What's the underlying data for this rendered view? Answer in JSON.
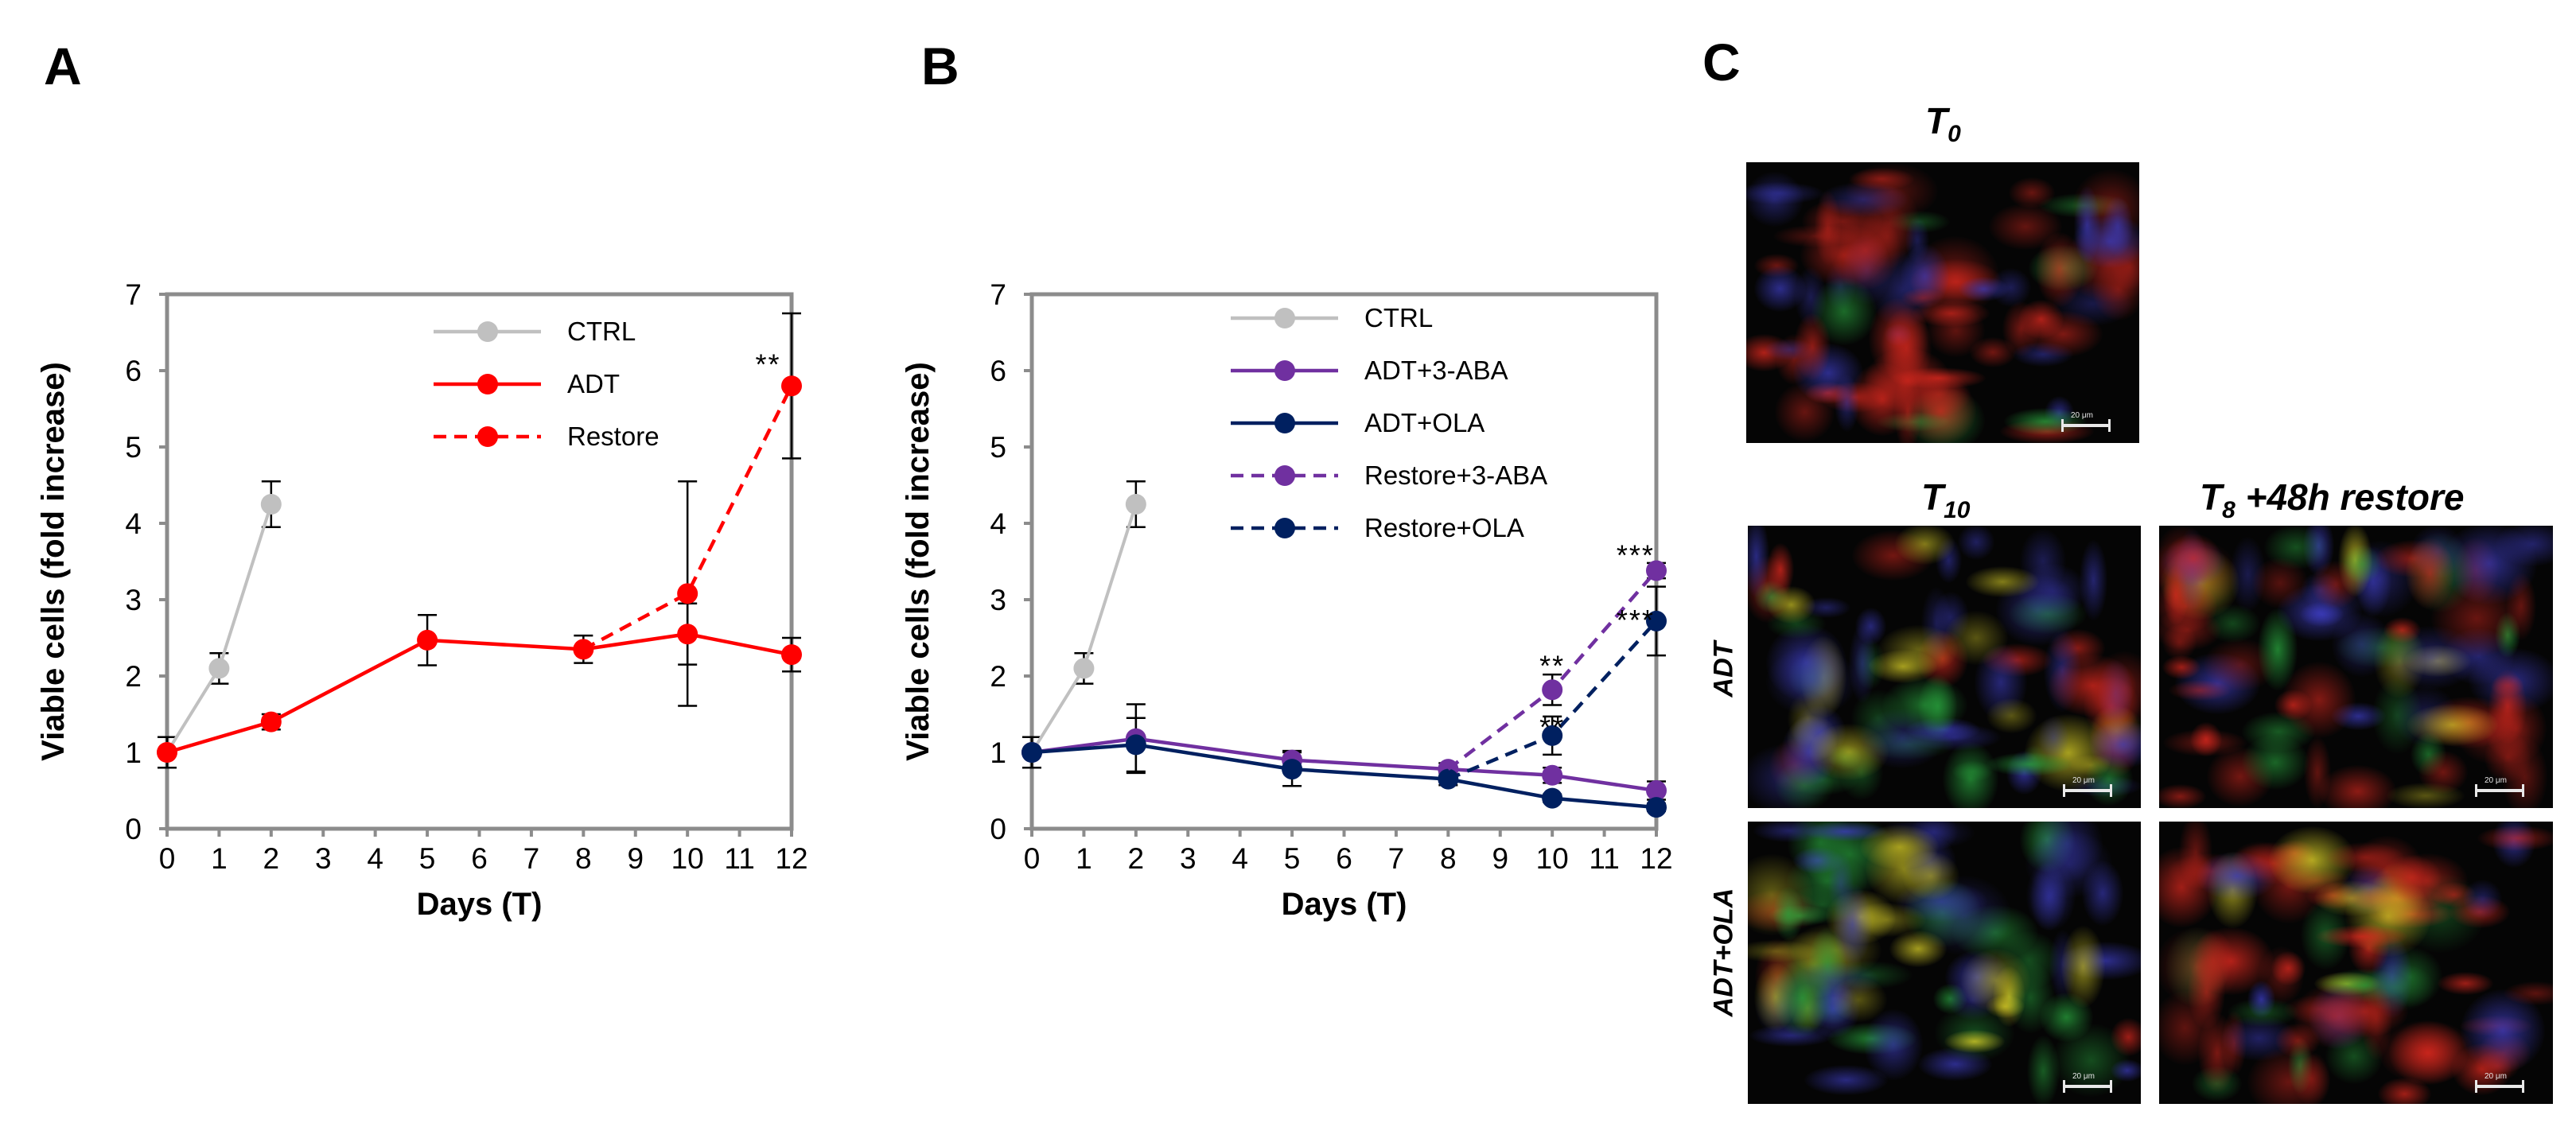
{
  "panels": {
    "a": "A",
    "b": "B",
    "c": "C"
  },
  "chart_data": [
    {
      "id": "A",
      "type": "line",
      "xlabel": "Days (T)",
      "ylabel": "Viable cells (fold increase)",
      "xlim": [
        0,
        12
      ],
      "ylim": [
        0,
        7
      ],
      "xticks": [
        0,
        1,
        2,
        3,
        4,
        5,
        6,
        7,
        8,
        9,
        10,
        11,
        12
      ],
      "yticks": [
        0,
        1,
        2,
        3,
        4,
        5,
        6,
        7
      ],
      "legend_position": "top-right",
      "series": [
        {
          "name": "CTRL",
          "color": "#c0c0c0",
          "dash": false,
          "x": [
            0,
            1,
            2
          ],
          "y": [
            1.0,
            2.1,
            4.25
          ],
          "err": [
            0.2,
            0.2,
            0.3
          ]
        },
        {
          "name": "ADT",
          "color": "#ff0000",
          "dash": false,
          "x": [
            0,
            2,
            5,
            8,
            10,
            12
          ],
          "y": [
            1.0,
            1.4,
            2.47,
            2.35,
            2.55,
            2.28
          ],
          "err": [
            0.2,
            0.1,
            0.33,
            0.18,
            0.4,
            0.22
          ]
        },
        {
          "name": "Restore",
          "color": "#ff0000",
          "dash": true,
          "x": [
            8,
            10,
            12
          ],
          "y": [
            2.35,
            3.08,
            5.8
          ],
          "err": [
            0,
            1.47,
            0.95
          ]
        }
      ],
      "annotations": [
        {
          "text": "**",
          "x": 11.55,
          "y": 6.1
        }
      ]
    },
    {
      "id": "B",
      "type": "line",
      "xlabel": "Days (T)",
      "ylabel": "Viable cells (fold increase)",
      "xlim": [
        0,
        12
      ],
      "ylim": [
        0,
        7
      ],
      "xticks": [
        0,
        1,
        2,
        3,
        4,
        5,
        6,
        7,
        8,
        9,
        10,
        11,
        12
      ],
      "yticks": [
        0,
        1,
        2,
        3,
        4,
        5,
        6,
        7
      ],
      "legend_position": "top-right",
      "series": [
        {
          "name": "CTRL",
          "color": "#c0c0c0",
          "dash": false,
          "x": [
            0,
            1,
            2
          ],
          "y": [
            1.0,
            2.1,
            4.25
          ],
          "err": [
            0.2,
            0.2,
            0.3
          ]
        },
        {
          "name": "ADT+3-ABA",
          "color": "#7030a0",
          "dash": false,
          "x": [
            0,
            2,
            5,
            8,
            10,
            12
          ],
          "y": [
            1.0,
            1.18,
            0.9,
            0.78,
            0.7,
            0.5
          ],
          "err": [
            0.2,
            0.45,
            0.12,
            0.08,
            0.1,
            0.12
          ]
        },
        {
          "name": "ADT+OLA",
          "color": "#002060",
          "dash": false,
          "x": [
            0,
            2,
            5,
            8,
            10,
            12
          ],
          "y": [
            1.0,
            1.1,
            0.78,
            0.65,
            0.4,
            0.28
          ],
          "err": [
            0.2,
            0.35,
            0.22,
            0.08,
            0.05,
            0.05
          ]
        },
        {
          "name": "Restore+3-ABA",
          "color": "#7030a0",
          "dash": true,
          "x": [
            8,
            10,
            12
          ],
          "y": [
            0.78,
            1.82,
            3.38
          ],
          "err": [
            0,
            0.2,
            0.1
          ]
        },
        {
          "name": "Restore+OLA",
          "color": "#002060",
          "dash": true,
          "x": [
            8,
            10,
            12
          ],
          "y": [
            0.65,
            1.22,
            2.72
          ],
          "err": [
            0,
            0.25,
            0.45
          ]
        }
      ],
      "annotations": [
        {
          "text": "***",
          "x": 11.6,
          "y": 3.6
        },
        {
          "text": "***",
          "x": 11.6,
          "y": 2.75
        },
        {
          "text": "**",
          "x": 10.0,
          "y": 2.15
        },
        {
          "text": "**",
          "x": 10.0,
          "y": 1.35
        }
      ]
    }
  ],
  "micrographs": {
    "title_t0": {
      "base": "T",
      "sub": "0",
      "rest": ""
    },
    "title_t10": {
      "base": "T",
      "sub": "10",
      "rest": ""
    },
    "title_t8": {
      "base": "T",
      "sub": "8",
      "rest": " +48h restore"
    },
    "row_adt": "ADT",
    "row_adt_ola": "ADT+OLA",
    "scale_label": "20 μm"
  }
}
